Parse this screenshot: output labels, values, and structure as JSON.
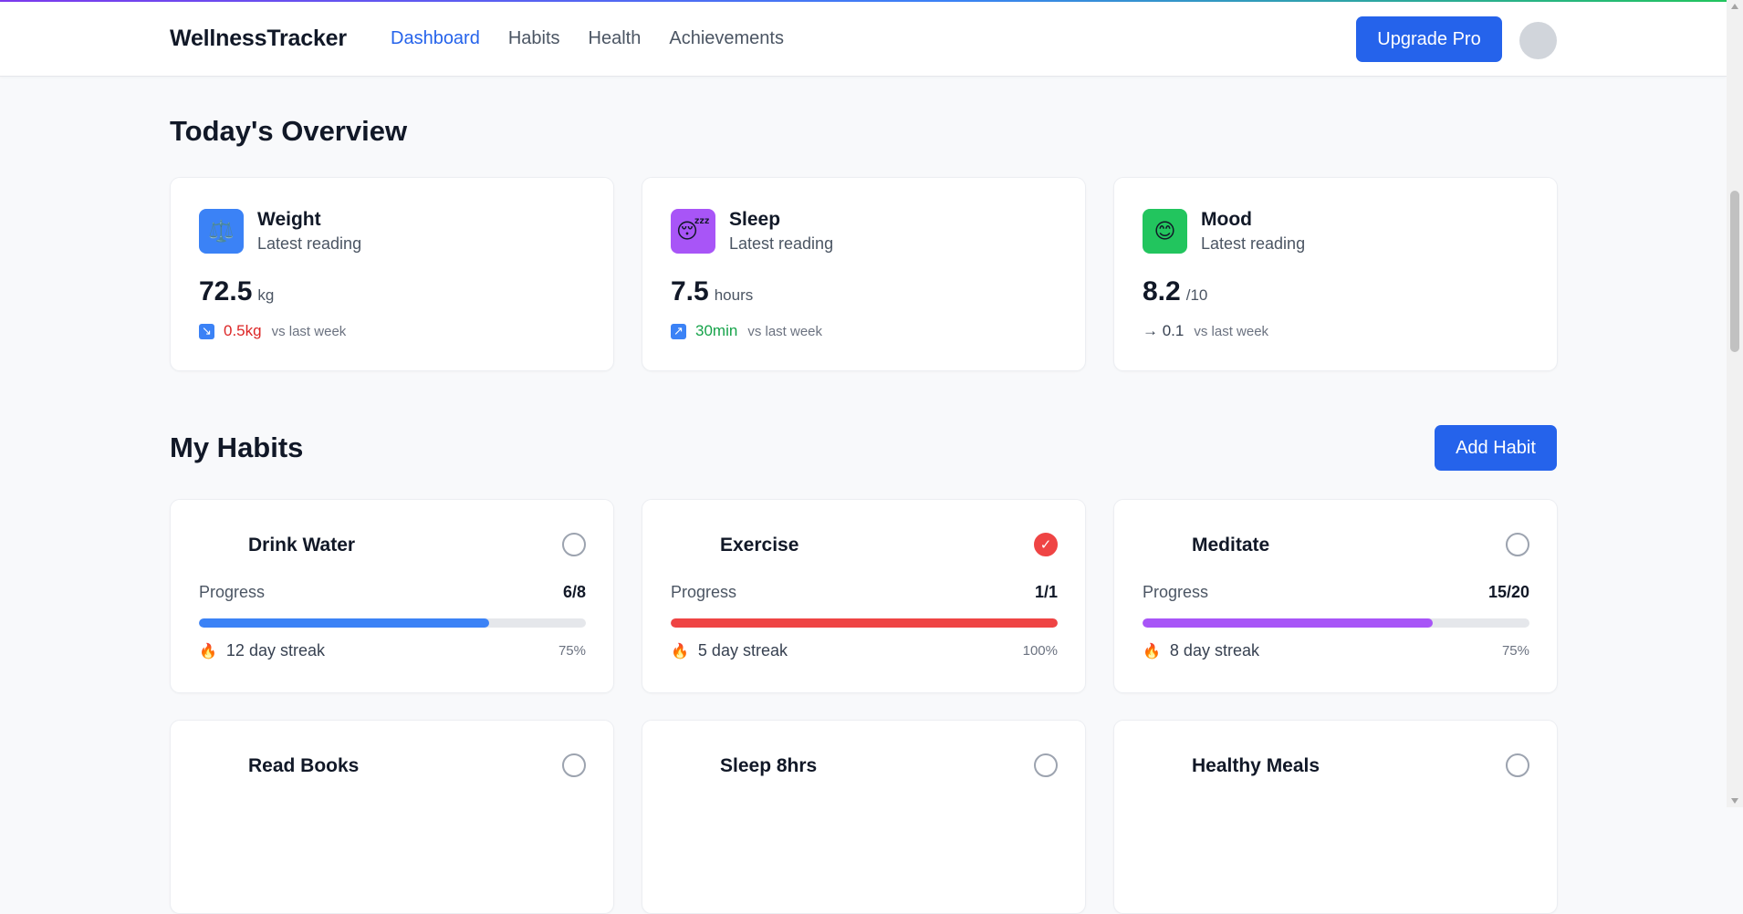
{
  "header": {
    "brand": "WellnessTracker",
    "nav": [
      {
        "label": "Dashboard",
        "active": true
      },
      {
        "label": "Habits",
        "active": false
      },
      {
        "label": "Health",
        "active": false
      },
      {
        "label": "Achievements",
        "active": false
      }
    ],
    "upgrade_label": "Upgrade Pro"
  },
  "overview": {
    "title": "Today's Overview",
    "cards": [
      {
        "name": "Weight",
        "subtitle": "Latest reading",
        "icon": "scale-icon",
        "icon_glyph": "⚖️",
        "icon_bg": "#3b82f6",
        "value": "72.5",
        "unit": "kg",
        "change": "0.5kg",
        "change_dir": "down",
        "change_color": "#dc2626",
        "arrow_glyph": "↘",
        "vs": "vs last week"
      },
      {
        "name": "Sleep",
        "subtitle": "Latest reading",
        "icon": "sleeping-face-icon",
        "icon_glyph": "😴",
        "icon_bg": "#a855f7",
        "value": "7.5",
        "unit": "hours",
        "change": "30min",
        "change_dir": "up",
        "change_color": "#16a34a",
        "arrow_glyph": "↗",
        "vs": "vs last week"
      },
      {
        "name": "Mood",
        "subtitle": "Latest reading",
        "icon": "smile-icon",
        "icon_glyph": "😊",
        "icon_bg": "#22c55e",
        "value": "8.2",
        "unit": "/10",
        "change": "→ 0.1",
        "change_dir": "neutral",
        "change_color": "#374151",
        "vs": "vs last week"
      }
    ]
  },
  "habits": {
    "title": "My Habits",
    "add_label": "Add Habit",
    "progress_label": "Progress",
    "items": [
      {
        "name": "Drink Water",
        "done": false,
        "count": "6/8",
        "progress": 0.75,
        "color": "#3b82f6",
        "streak": "12 day streak",
        "percent": "75%"
      },
      {
        "name": "Exercise",
        "done": true,
        "count": "1/1",
        "progress": 1.0,
        "color": "#ef4444",
        "streak": "5 day streak",
        "percent": "100%"
      },
      {
        "name": "Meditate",
        "done": false,
        "count": "15/20",
        "progress": 0.75,
        "color": "#a855f7",
        "streak": "8 day streak",
        "percent": "75%"
      },
      {
        "name": "Read Books",
        "done": false
      },
      {
        "name": "Sleep 8hrs",
        "done": false
      },
      {
        "name": "Healthy Meals",
        "done": false
      }
    ],
    "check_glyph": "✓",
    "flame_glyph": "🔥"
  }
}
